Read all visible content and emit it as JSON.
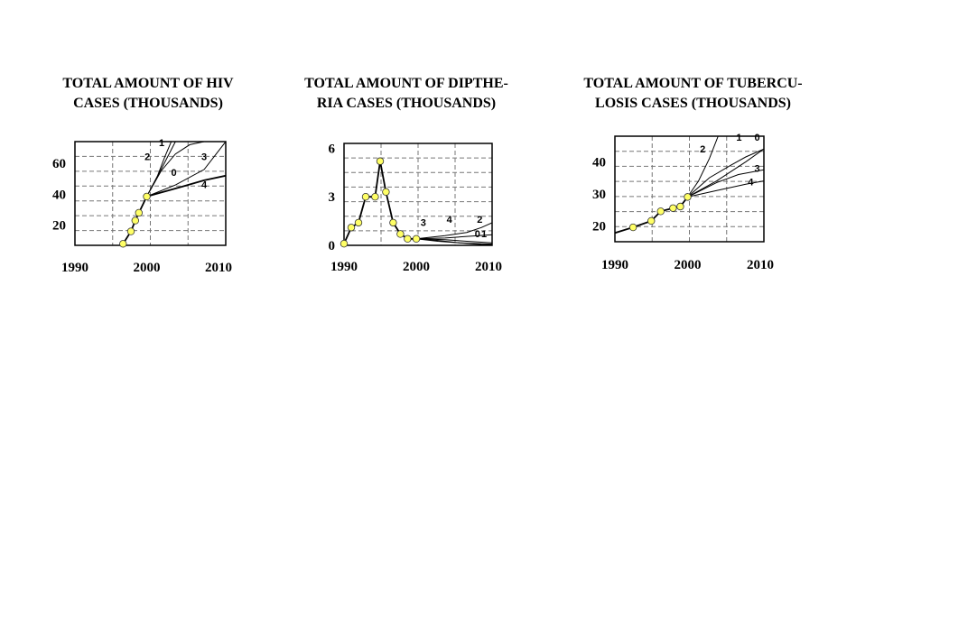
{
  "chart_data": [
    {
      "type": "line",
      "title_lines": [
        "TOTAL AMOUNT OF HIV",
        "CASES  (THOUSANDS)"
      ],
      "x_ticks": [
        1990,
        2000,
        2010
      ],
      "y_ticks": [
        20,
        40,
        60
      ],
      "xlim": [
        1990,
        2011
      ],
      "ylim": [
        7,
        74
      ],
      "grid": true,
      "marker_color": "#ffff66",
      "observed": {
        "x": [
          1996.7,
          1997.8,
          1998.4,
          1998.9,
          2000
        ],
        "y": [
          8,
          16,
          23,
          28,
          38.5
        ]
      },
      "series": [
        {
          "name": "1",
          "x": [
            2000,
            2002,
            2004,
            2006
          ],
          "y": [
            38.5,
            56,
            74,
            80
          ]
        },
        {
          "name": "2",
          "x": [
            2000,
            2001.5,
            2002.5,
            2003.5
          ],
          "y": [
            38.5,
            52,
            64,
            75
          ]
        },
        {
          "name": "0",
          "x": [
            2000,
            2002,
            2004,
            2006,
            2008
          ],
          "y": [
            38.5,
            55,
            66,
            72,
            74
          ]
        },
        {
          "name": "3",
          "x": [
            2000,
            2004,
            2008,
            2011
          ],
          "y": [
            38.5,
            46,
            56,
            74
          ]
        },
        {
          "name": "4",
          "x": [
            2000,
            2005,
            2008,
            2011
          ],
          "y": [
            38.5,
            45,
            49,
            52
          ]
        }
      ],
      "series_label_pos": [
        {
          "name": "1",
          "x": 2001.7,
          "y": 71
        },
        {
          "name": "2",
          "x": 1999.7,
          "y": 62
        },
        {
          "name": "0",
          "x": 2003.4,
          "y": 52
        },
        {
          "name": "3",
          "x": 2007.6,
          "y": 62
        },
        {
          "name": "4",
          "x": 2007.6,
          "y": 44
        }
      ]
    },
    {
      "type": "line",
      "title_lines": [
        "TOTAL AMOUNT OF  DIPTHE-",
        "RIA CASES  (THOUSANDS)"
      ],
      "x_ticks": [
        1990,
        2000,
        2010
      ],
      "y_ticks": [
        0,
        3,
        6
      ],
      "xlim": [
        1990,
        2010.5
      ],
      "ylim": [
        0,
        6.3
      ],
      "grid": true,
      "marker_color": "#ffff66",
      "observed": {
        "x": [
          1990,
          1991,
          1992,
          1993,
          1994.3,
          1995,
          1995.8,
          1996.8,
          1997.8,
          1998.8,
          2000
        ],
        "y": [
          0.1,
          1.1,
          1.4,
          3.0,
          3.0,
          5.2,
          3.3,
          1.4,
          0.7,
          0.4,
          0.4
        ]
      },
      "series": [
        {
          "name": "3",
          "x": [
            2000,
            2003,
            2006,
            2009,
            2010.5
          ],
          "y": [
            0.4,
            0.25,
            0.15,
            0.1,
            0.08
          ]
        },
        {
          "name": "4",
          "x": [
            2000,
            2003,
            2006,
            2009,
            2010.5
          ],
          "y": [
            0.4,
            0.3,
            0.15,
            0.05,
            0.03
          ]
        },
        {
          "name": "2",
          "x": [
            2000,
            2004,
            2007,
            2009,
            2010.5
          ],
          "y": [
            0.4,
            0.6,
            0.8,
            1.1,
            1.4
          ]
        },
        {
          "name": "0",
          "x": [
            2000,
            2004,
            2007,
            2010.5
          ],
          "y": [
            0.4,
            0.35,
            0.25,
            0.15
          ]
        },
        {
          "name": "1",
          "x": [
            2000,
            2004,
            2007,
            2010.5
          ],
          "y": [
            0.4,
            0.45,
            0.55,
            0.65
          ]
        }
      ],
      "series_label_pos": [
        {
          "name": "3",
          "x": 2000.6,
          "y": 1.2
        },
        {
          "name": "4",
          "x": 2004.2,
          "y": 1.4
        },
        {
          "name": "2",
          "x": 2008.4,
          "y": 1.4
        },
        {
          "name": "0",
          "x": 2008.1,
          "y": 0.5
        },
        {
          "name": "1",
          "x": 2009.0,
          "y": 0.5
        }
      ]
    },
    {
      "type": "line",
      "title_lines": [
        "TOTAL AMOUNT OF TUBERCU-",
        "LOSIS CASES  (THOUSANDS)"
      ],
      "x_ticks": [
        1990,
        2000,
        2010
      ],
      "y_ticks": [
        20,
        30,
        40
      ],
      "xlim": [
        1990,
        2010.5
      ],
      "ylim": [
        15,
        48
      ],
      "grid": true,
      "marker_color": "#ffff66",
      "observed": {
        "x": [
          1987.5,
          1992.5,
          1995,
          1996.3,
          1998,
          1999,
          2000
        ],
        "y": [
          16,
          19.5,
          21.5,
          24.5,
          25.5,
          26,
          29
        ]
      },
      "series": [
        {
          "name": "2",
          "x": [
            2000,
            2001.5,
            2003,
            2004.2
          ],
          "y": [
            29,
            34,
            41,
            48
          ]
        },
        {
          "name": "1",
          "x": [
            2000,
            2003,
            2006,
            2008,
            2010.5
          ],
          "y": [
            29,
            35,
            39,
            41.5,
            44
          ]
        },
        {
          "name": "0",
          "x": [
            2000,
            2004,
            2008,
            2010.5
          ],
          "y": [
            29,
            34,
            40,
            44
          ]
        },
        {
          "name": "3",
          "x": [
            2000,
            2004,
            2007,
            2010.5
          ],
          "y": [
            29,
            33.5,
            36,
            37.5
          ]
        },
        {
          "name": "4",
          "x": [
            2000,
            2004,
            2008,
            2010.5
          ],
          "y": [
            29,
            31,
            33,
            34
          ]
        }
      ],
      "series_label_pos": [
        {
          "name": "1",
          "x": 2006.7,
          "y": 46.6
        },
        {
          "name": "0",
          "x": 2009.2,
          "y": 46.6
        },
        {
          "name": "2",
          "x": 2001.7,
          "y": 42.9
        },
        {
          "name": "3",
          "x": 2009.2,
          "y": 36.8
        },
        {
          "name": "4",
          "x": 2008.3,
          "y": 32.6
        }
      ]
    }
  ]
}
